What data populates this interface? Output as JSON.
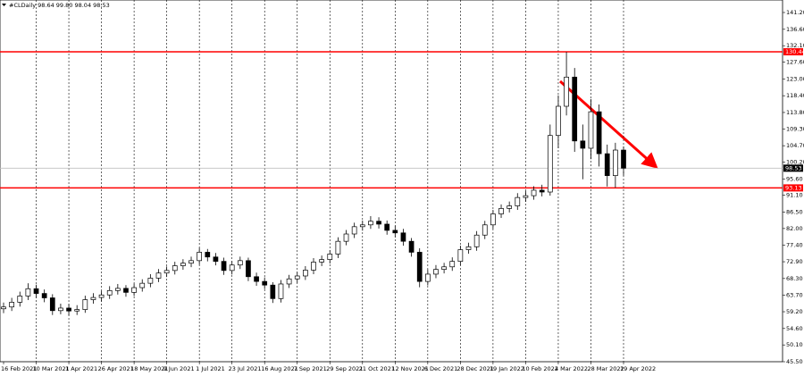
{
  "chart_data": {
    "type": "candlestick",
    "title": "#CLDaily  98.64 99.80 98.04 98.53",
    "categories": [
      "16 Feb 2021",
      null,
      null,
      null,
      "10 Mar 2021",
      null,
      null,
      null,
      "1 Apr 2021",
      null,
      null,
      null,
      "26 Apr 2021",
      null,
      null,
      null,
      "18 May 2021",
      null,
      null,
      null,
      "9 Jun 2021",
      null,
      null,
      null,
      "1 Jul 2021",
      null,
      null,
      null,
      "23 Jul 2021",
      null,
      null,
      null,
      "16 Aug 2021",
      null,
      null,
      null,
      "7 Sep 2021",
      null,
      null,
      null,
      "29 Sep 2021",
      null,
      null,
      null,
      "21 Oct 2021",
      null,
      null,
      null,
      "12 Nov 2021",
      null,
      null,
      null,
      "6 Dec 2021",
      null,
      null,
      null,
      "28 Dec 2021",
      null,
      null,
      null,
      "19 Jan 2022",
      null,
      null,
      null,
      "10 Feb 2022",
      null,
      null,
      null,
      "4 Mar 2022",
      null,
      null,
      null,
      "28 Mar 2022",
      null,
      null,
      null,
      "19 Apr 2022"
    ],
    "open": [
      60.0,
      60.5,
      61.8,
      63.5,
      65.5,
      64.2,
      63.0,
      59.5,
      60.2,
      59.4,
      59.8,
      62.5,
      63.1,
      63.8,
      65.0,
      65.6,
      64.5,
      65.8,
      67.0,
      68.4,
      69.8,
      70.5,
      71.8,
      72.5,
      73.2,
      75.5,
      74.2,
      73.0,
      70.5,
      72.0,
      73.2,
      68.8,
      67.5,
      66.5,
      62.8,
      66.8,
      68.2,
      69.0,
      70.6,
      72.8,
      73.5,
      75.0,
      78.5,
      80.5,
      82.5,
      83.0,
      84.0,
      83.2,
      81.5,
      80.8,
      78.5,
      75.5,
      67.5,
      69.5,
      70.8,
      71.5,
      73.0,
      76.2,
      77.0,
      80.2,
      83.0,
      86.0,
      87.5,
      88.2,
      90.5,
      91.0,
      92.5,
      92.0,
      107.5,
      115.5,
      123.5,
      106.0,
      104.0,
      114.0,
      102.5,
      96.5,
      103.5
    ],
    "high": [
      61.7,
      63.0,
      64.7,
      67.0,
      66.6,
      65.3,
      64.0,
      61.4,
      61.3,
      61.0,
      63.6,
      64.3,
      64.9,
      66.2,
      66.8,
      66.5,
      66.9,
      68.1,
      69.5,
      70.9,
      71.6,
      72.9,
      73.6,
      74.3,
      76.7,
      76.4,
      75.3,
      74.0,
      73.1,
      74.3,
      74.0,
      69.9,
      68.6,
      67.3,
      67.9,
      69.3,
      70.1,
      71.7,
      73.9,
      74.6,
      76.1,
      79.6,
      81.6,
      83.6,
      84.2,
      85.4,
      85.1,
      84.2,
      82.8,
      81.9,
      79.4,
      76.6,
      70.8,
      72.0,
      72.6,
      74.1,
      77.3,
      78.1,
      81.3,
      84.1,
      87.1,
      88.6,
      89.4,
      91.7,
      92.3,
      93.6,
      94.0,
      110.5,
      118.5,
      130.4,
      126.0,
      110.5,
      117.5,
      116.0,
      105.0,
      105.5,
      104.5
    ],
    "low": [
      58.8,
      59.4,
      60.6,
      62.4,
      63.0,
      61.8,
      58.3,
      58.5,
      58.2,
      58.3,
      58.9,
      61.4,
      62.0,
      62.7,
      63.9,
      63.3,
      63.5,
      64.7,
      65.9,
      67.3,
      68.7,
      69.4,
      70.7,
      71.4,
      72.1,
      73.0,
      71.9,
      69.3,
      69.4,
      70.9,
      67.6,
      66.3,
      65.4,
      61.6,
      61.7,
      65.7,
      67.1,
      67.9,
      69.5,
      71.7,
      72.4,
      73.9,
      77.4,
      79.4,
      81.4,
      81.9,
      82.0,
      80.3,
      79.6,
      77.3,
      74.3,
      65.9,
      66.4,
      68.4,
      69.7,
      70.4,
      71.9,
      75.1,
      75.9,
      79.1,
      81.9,
      84.9,
      86.4,
      87.1,
      89.3,
      89.9,
      90.8,
      91.0,
      104.0,
      113.0,
      103.0,
      95.5,
      101.0,
      99.0,
      93.5,
      93.2,
      96.5
    ],
    "close": [
      60.5,
      61.8,
      63.5,
      65.5,
      64.2,
      63.0,
      59.5,
      60.2,
      59.4,
      59.8,
      62.5,
      63.1,
      63.8,
      65.0,
      65.6,
      64.5,
      65.8,
      67.0,
      68.4,
      69.8,
      70.5,
      71.8,
      72.5,
      73.2,
      75.5,
      74.2,
      73.0,
      70.5,
      72.0,
      73.2,
      68.8,
      67.5,
      66.5,
      62.8,
      66.8,
      68.2,
      69.0,
      70.6,
      72.8,
      73.5,
      75.0,
      78.5,
      80.5,
      82.5,
      83.0,
      84.0,
      83.2,
      81.5,
      80.8,
      78.5,
      75.5,
      67.5,
      69.5,
      70.8,
      71.5,
      73.0,
      76.2,
      77.0,
      80.2,
      83.0,
      86.0,
      87.5,
      88.2,
      90.5,
      91.0,
      92.5,
      92.0,
      107.5,
      115.5,
      123.5,
      106.0,
      104.0,
      114.0,
      102.5,
      96.5,
      103.5,
      98.53
    ],
    "ylim": [
      45.5,
      141.2
    ],
    "yticks": [
      {
        "value": 141.2,
        "label": "141.20"
      },
      {
        "value": 136.6,
        "label": "136.60"
      },
      {
        "value": 132.1,
        "label": "132.10"
      },
      {
        "value": 127.6,
        "label": "127.60"
      },
      {
        "value": 123.0,
        "label": "123.00"
      },
      {
        "value": 118.4,
        "label": "118.40"
      },
      {
        "value": 113.8,
        "label": "113.80"
      },
      {
        "value": 109.3,
        "label": "109.30"
      },
      {
        "value": 104.7,
        "label": "104.70"
      },
      {
        "value": 100.2,
        "label": "100.20"
      },
      {
        "value": 95.6,
        "label": "95.60"
      },
      {
        "value": 91.1,
        "label": "91.10"
      },
      {
        "value": 86.5,
        "label": "86.50"
      },
      {
        "value": 82.0,
        "label": "82.00"
      },
      {
        "value": 77.4,
        "label": "77.40"
      },
      {
        "value": 72.9,
        "label": "72.90"
      },
      {
        "value": 68.3,
        "label": "68.30"
      },
      {
        "value": 63.7,
        "label": "63.70"
      },
      {
        "value": 59.2,
        "label": "59.20"
      },
      {
        "value": 54.6,
        "label": "54.60"
      },
      {
        "value": 50.1,
        "label": "50.10"
      },
      {
        "value": 45.5,
        "label": "45.50"
      }
    ],
    "levels": [
      {
        "value": 130.44,
        "color": "#ff0000"
      },
      {
        "value": 98.53,
        "color": "#c0c0c0",
        "label_color": "#000000"
      },
      {
        "value": 93.13,
        "color": "#ff0000"
      }
    ],
    "up_color": "#ffffff",
    "down_color": "#000000",
    "grid": true
  }
}
